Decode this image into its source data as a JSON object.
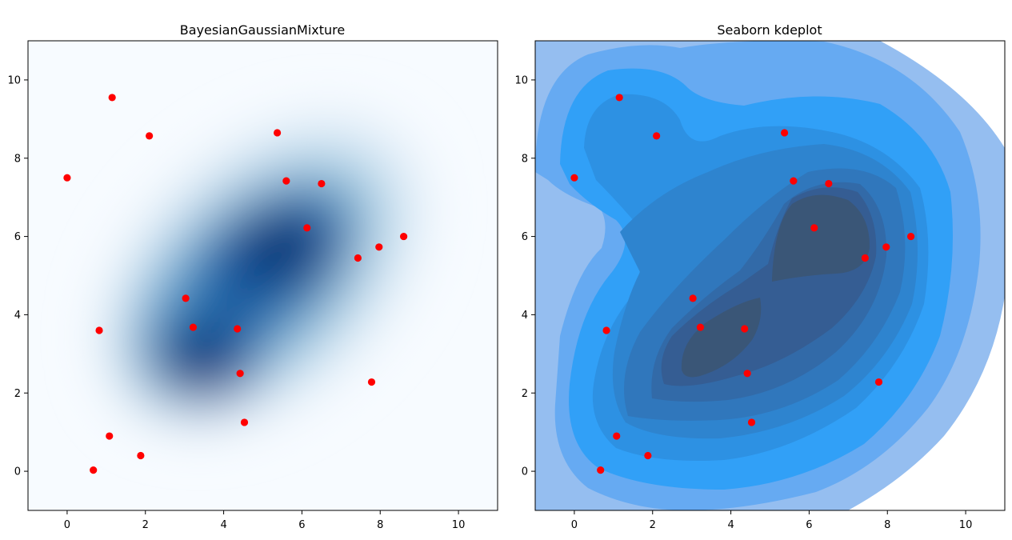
{
  "chart_data": [
    {
      "type": "scatter",
      "title": "BayesianGaussianMixture",
      "xlabel": "",
      "ylabel": "",
      "xlim": [
        -1,
        11
      ],
      "ylim": [
        -1,
        11
      ],
      "xticks": [
        "0",
        "2",
        "4",
        "6",
        "8",
        "10"
      ],
      "yticks": [
        "0",
        "2",
        "4",
        "6",
        "8",
        "10"
      ],
      "background": "density heatmap (Blues colormap)",
      "point_color": "#ff0000",
      "grid": false,
      "points": [
        [
          0.0,
          7.5
        ],
        [
          1.15,
          9.55
        ],
        [
          2.1,
          8.57
        ],
        [
          5.37,
          8.65
        ],
        [
          5.6,
          7.42
        ],
        [
          6.5,
          7.35
        ],
        [
          6.13,
          6.22
        ],
        [
          7.43,
          5.45
        ],
        [
          7.97,
          5.73
        ],
        [
          8.6,
          6.0
        ],
        [
          3.03,
          4.42
        ],
        [
          3.22,
          3.68
        ],
        [
          4.35,
          3.64
        ],
        [
          0.82,
          3.6
        ],
        [
          4.42,
          2.5
        ],
        [
          7.78,
          2.28
        ],
        [
          4.53,
          1.25
        ],
        [
          1.08,
          0.9
        ],
        [
          1.88,
          0.4
        ],
        [
          0.67,
          0.03
        ]
      ]
    },
    {
      "type": "scatter",
      "title": "Seaborn kdeplot",
      "xlabel": "",
      "ylabel": "",
      "xlim": [
        -1,
        11
      ],
      "ylim": [
        -1,
        11
      ],
      "xticks": [
        "0",
        "2",
        "4",
        "6",
        "8",
        "10"
      ],
      "yticks": [
        "0",
        "2",
        "4",
        "6",
        "8",
        "10"
      ],
      "background": "filled KDE contours (blue levels)",
      "point_color": "#ff0000",
      "grid": false,
      "points": [
        [
          0.0,
          7.5
        ],
        [
          1.15,
          9.55
        ],
        [
          2.1,
          8.57
        ],
        [
          5.37,
          8.65
        ],
        [
          5.6,
          7.42
        ],
        [
          6.5,
          7.35
        ],
        [
          6.13,
          6.22
        ],
        [
          7.43,
          5.45
        ],
        [
          7.97,
          5.73
        ],
        [
          8.6,
          6.0
        ],
        [
          3.03,
          4.42
        ],
        [
          3.22,
          3.68
        ],
        [
          4.35,
          3.64
        ],
        [
          0.82,
          3.6
        ],
        [
          4.42,
          2.5
        ],
        [
          7.78,
          2.28
        ],
        [
          4.53,
          1.25
        ],
        [
          1.08,
          0.9
        ],
        [
          1.88,
          0.4
        ],
        [
          0.67,
          0.03
        ]
      ]
    }
  ]
}
